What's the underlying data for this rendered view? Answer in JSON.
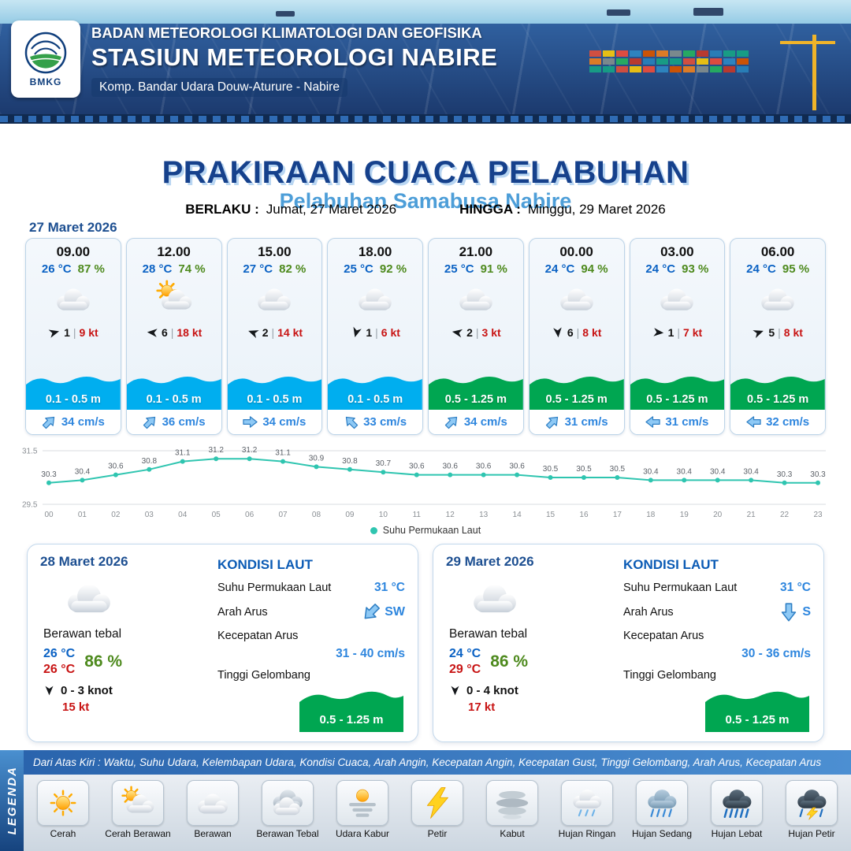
{
  "colors": {
    "accent_blue": "#1d4f91",
    "temp_blue": "#0b62c4",
    "rh_green": "#4e8a1e",
    "gust_red": "#c81414",
    "wave_blue": "#00aeef",
    "wave_green": "#00a651",
    "line_teal": "#2fc5b0",
    "current_blue": "#2e86de"
  },
  "header": {
    "logo_text": "BMKG",
    "org": "BADAN METEOROLOGI KLIMATOLOGI DAN GEOFISIKA",
    "station": "STASIUN METEOROLOGI NABIRE",
    "address": "Komp. Bandar Udara Douw-Aturure - Nabire"
  },
  "title": {
    "main": "PRAKIRAAN CUACA PELABUHAN",
    "subtitle": "Pelabuhan Samabusa Nabire",
    "berlaku_label": "BERLAKU :",
    "berlaku_value": "Jumat, 27 Maret 2026",
    "hingga_label": "HINGGA :",
    "hingga_value": "Minggu, 29 Maret 2026"
  },
  "hourly": {
    "date": "27 Maret 2026",
    "sep": "|",
    "cards": [
      {
        "time": "09.00",
        "temp": "26 °C",
        "rh": "87 %",
        "icon": "cloud",
        "wind_dir_deg": -15,
        "wind": "1",
        "gust": "9 kt",
        "wave": "0.1 - 0.5 m",
        "wave_color": "blue",
        "current_dir_deg": -45,
        "current": "34 cm/s"
      },
      {
        "time": "12.00",
        "temp": "28 °C",
        "rh": "74 %",
        "icon": "sun-cloud",
        "wind_dir_deg": 185,
        "wind": "6",
        "gust": "18 kt",
        "wave": "0.1 - 0.5 m",
        "wave_color": "blue",
        "current_dir_deg": -45,
        "current": "36 cm/s"
      },
      {
        "time": "15.00",
        "temp": "27 °C",
        "rh": "82 %",
        "icon": "cloud",
        "wind_dir_deg": 200,
        "wind": "2",
        "gust": "14 kt",
        "wave": "0.1 - 0.5 m",
        "wave_color": "blue",
        "current_dir_deg": 0,
        "current": "34 cm/s"
      },
      {
        "time": "18.00",
        "temp": "25 °C",
        "rh": "92 %",
        "icon": "cloud",
        "wind_dir_deg": 105,
        "wind": "1",
        "gust": "6 kt",
        "wave": "0.1 - 0.5 m",
        "wave_color": "blue",
        "current_dir_deg": -135,
        "current": "33 cm/s"
      },
      {
        "time": "21.00",
        "temp": "25 °C",
        "rh": "91 %",
        "icon": "cloud",
        "wind_dir_deg": 190,
        "wind": "2",
        "gust": "3 kt",
        "wave": "0.5 - 1.25 m",
        "wave_color": "green",
        "current_dir_deg": -45,
        "current": "34 cm/s"
      },
      {
        "time": "00.00",
        "temp": "24 °C",
        "rh": "94 %",
        "icon": "cloud",
        "wind_dir_deg": 85,
        "wind": "6",
        "gust": "8 kt",
        "wave": "0.5 - 1.25 m",
        "wave_color": "green",
        "current_dir_deg": -45,
        "current": "31 cm/s"
      },
      {
        "time": "03.00",
        "temp": "24 °C",
        "rh": "93 %",
        "icon": "cloud",
        "wind_dir_deg": 5,
        "wind": "1",
        "gust": "7 kt",
        "wave": "0.5 - 1.25 m",
        "wave_color": "green",
        "current_dir_deg": 180,
        "current": "31 cm/s"
      },
      {
        "time": "06.00",
        "temp": "24 °C",
        "rh": "95 %",
        "icon": "cloud",
        "wind_dir_deg": -20,
        "wind": "5",
        "gust": "8 kt",
        "wave": "0.5 - 1.25 m",
        "wave_color": "green",
        "current_dir_deg": 180,
        "current": "32 cm/s"
      }
    ]
  },
  "chart_data": {
    "type": "line",
    "title": "",
    "x": [
      "00",
      "01",
      "02",
      "03",
      "04",
      "05",
      "06",
      "07",
      "08",
      "09",
      "10",
      "11",
      "12",
      "13",
      "14",
      "15",
      "16",
      "17",
      "18",
      "19",
      "20",
      "21",
      "22",
      "23"
    ],
    "series": [
      {
        "name": "Suhu Permukaan Laut",
        "values": [
          30.3,
          30.4,
          30.6,
          30.8,
          31.1,
          31.2,
          31.2,
          31.1,
          30.9,
          30.8,
          30.7,
          30.6,
          30.6,
          30.6,
          30.6,
          30.5,
          30.5,
          30.5,
          30.4,
          30.4,
          30.4,
          30.4,
          30.3,
          30.3
        ]
      }
    ],
    "ylim": [
      29.5,
      31.5
    ],
    "yticks": [
      "31.5",
      "29.5"
    ],
    "legend_position": "bottom",
    "grid": true,
    "line_color": "#2fc5b0"
  },
  "daily": [
    {
      "date": "28 Maret 2026",
      "icon": "cloud",
      "condition": "Berawan tebal",
      "temp_day": "26 °C",
      "temp_night": "26 °C",
      "rh": "86 %",
      "wind": "0 - 3 knot",
      "gust": "15 kt",
      "sea_title": "KONDISI LAUT",
      "sst_label": "Suhu Permukaan Laut",
      "sst": "31 °C",
      "dir_label": "Arah Arus",
      "dir": "SW",
      "dir_deg": 135,
      "speed_label": "Kecepatan Arus",
      "speed": "31 - 40 cm/s",
      "wave_label": "Tinggi Gelombang",
      "wave": "0.5 - 1.25 m"
    },
    {
      "date": "29 Maret 2026",
      "icon": "cloud",
      "condition": "Berawan tebal",
      "temp_day": "24 °C",
      "temp_night": "29 °C",
      "rh": "86 %",
      "wind": "0 - 4 knot",
      "gust": "17 kt",
      "sea_title": "KONDISI LAUT",
      "sst_label": "Suhu Permukaan Laut",
      "sst": "31 °C",
      "dir_label": "Arah Arus",
      "dir": "S",
      "dir_deg": 90,
      "speed_label": "Kecepatan Arus",
      "speed": "30 - 36 cm/s",
      "wave_label": "Tinggi Gelombang",
      "wave": "0.5 - 1.25 m"
    }
  ],
  "legend": {
    "side_label": "LEGENDA",
    "description": "Dari Atas Kiri : Waktu, Suhu Udara, Kelembapan Udara, Kondisi Cuaca, Arah Angin, Kecepatan Angin, Kecepatan Gust, Tinggi Gelombang, Arah Arus, Kecepatan Arus",
    "items": [
      {
        "label": "Cerah",
        "icon": "sun"
      },
      {
        "label": "Cerah Berawan",
        "icon": "sun-cloud"
      },
      {
        "label": "Berawan",
        "icon": "cloud"
      },
      {
        "label": "Berawan Tebal",
        "icon": "cloud-thick"
      },
      {
        "label": "Udara Kabur",
        "icon": "haze"
      },
      {
        "label": "Petir",
        "icon": "lightning"
      },
      {
        "label": "Kabut",
        "icon": "fog"
      },
      {
        "label": "Hujan Ringan",
        "icon": "rain-light"
      },
      {
        "label": "Hujan Sedang",
        "icon": "rain-moderate"
      },
      {
        "label": "Hujan Lebat",
        "icon": "rain-heavy"
      },
      {
        "label": "Hujan Petir",
        "icon": "thunderstorm"
      }
    ]
  }
}
